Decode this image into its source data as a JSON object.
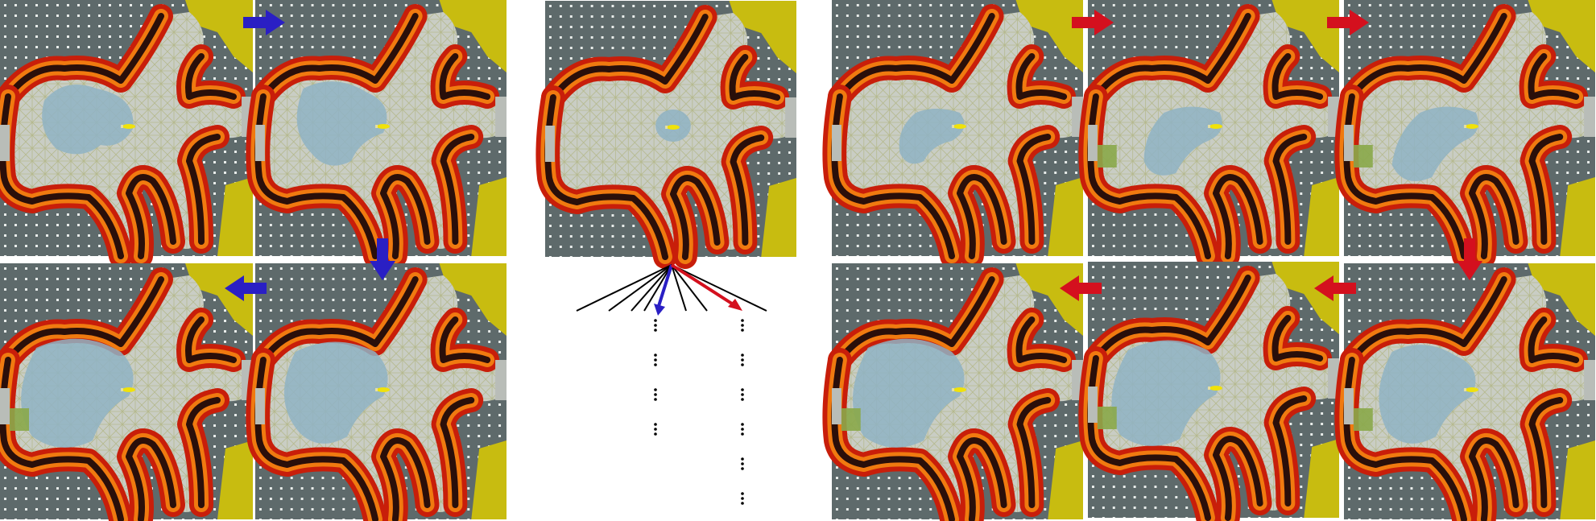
{
  "figure": {
    "left_group": {
      "arrow_color": "#2a1fc4",
      "panels": [
        {
          "id": "L1",
          "blob": "blob-1"
        },
        {
          "id": "L2",
          "blob": "blob-2"
        },
        {
          "id": "L3",
          "blob": "blob-4"
        },
        {
          "id": "L4",
          "blob": "blob-3"
        }
      ],
      "arrows": [
        {
          "id": "L-a1",
          "direction": "right"
        },
        {
          "id": "L-a2",
          "direction": "down"
        },
        {
          "id": "L-a3",
          "direction": "left"
        }
      ]
    },
    "center_group": {
      "panel": {
        "id": "C",
        "blob": "blob-small"
      },
      "tree": {
        "branch_count": 8,
        "highlighted": [
          {
            "name": "blue-branch",
            "color": "#2a1fc4"
          },
          {
            "name": "red-branch",
            "color": "#d4101e"
          }
        ],
        "left_column_ellipses": 4,
        "right_column_ellipses": 6
      }
    },
    "right_group": {
      "arrow_color": "#d4101e",
      "panels": [
        {
          "id": "R1",
          "blob": "blob-r1"
        },
        {
          "id": "R2",
          "blob": "blob-r2"
        },
        {
          "id": "R3",
          "blob": "blob-r3"
        },
        {
          "id": "R4",
          "blob": "blob-r6"
        },
        {
          "id": "R5",
          "blob": "blob-r5"
        },
        {
          "id": "R6",
          "blob": "blob-r4"
        }
      ],
      "arrows": [
        {
          "id": "R-a1",
          "direction": "right"
        },
        {
          "id": "R-a2",
          "direction": "right"
        },
        {
          "id": "R-a3",
          "direction": "down"
        },
        {
          "id": "R-a4",
          "direction": "left"
        },
        {
          "id": "R-a5",
          "direction": "left"
        }
      ]
    },
    "colors": {
      "background_dark": "#5e6a6b",
      "free_space": "#c9cdc4",
      "lava_outer": "#c81e0a",
      "lava_mid": "#f07a10",
      "lava_inner": "#2a0f0a",
      "explored": "#8fb3c4",
      "goal": "#f0e20a",
      "yellow_corner": "#c8bc10",
      "green_patch": "#8aa84a"
    }
  }
}
